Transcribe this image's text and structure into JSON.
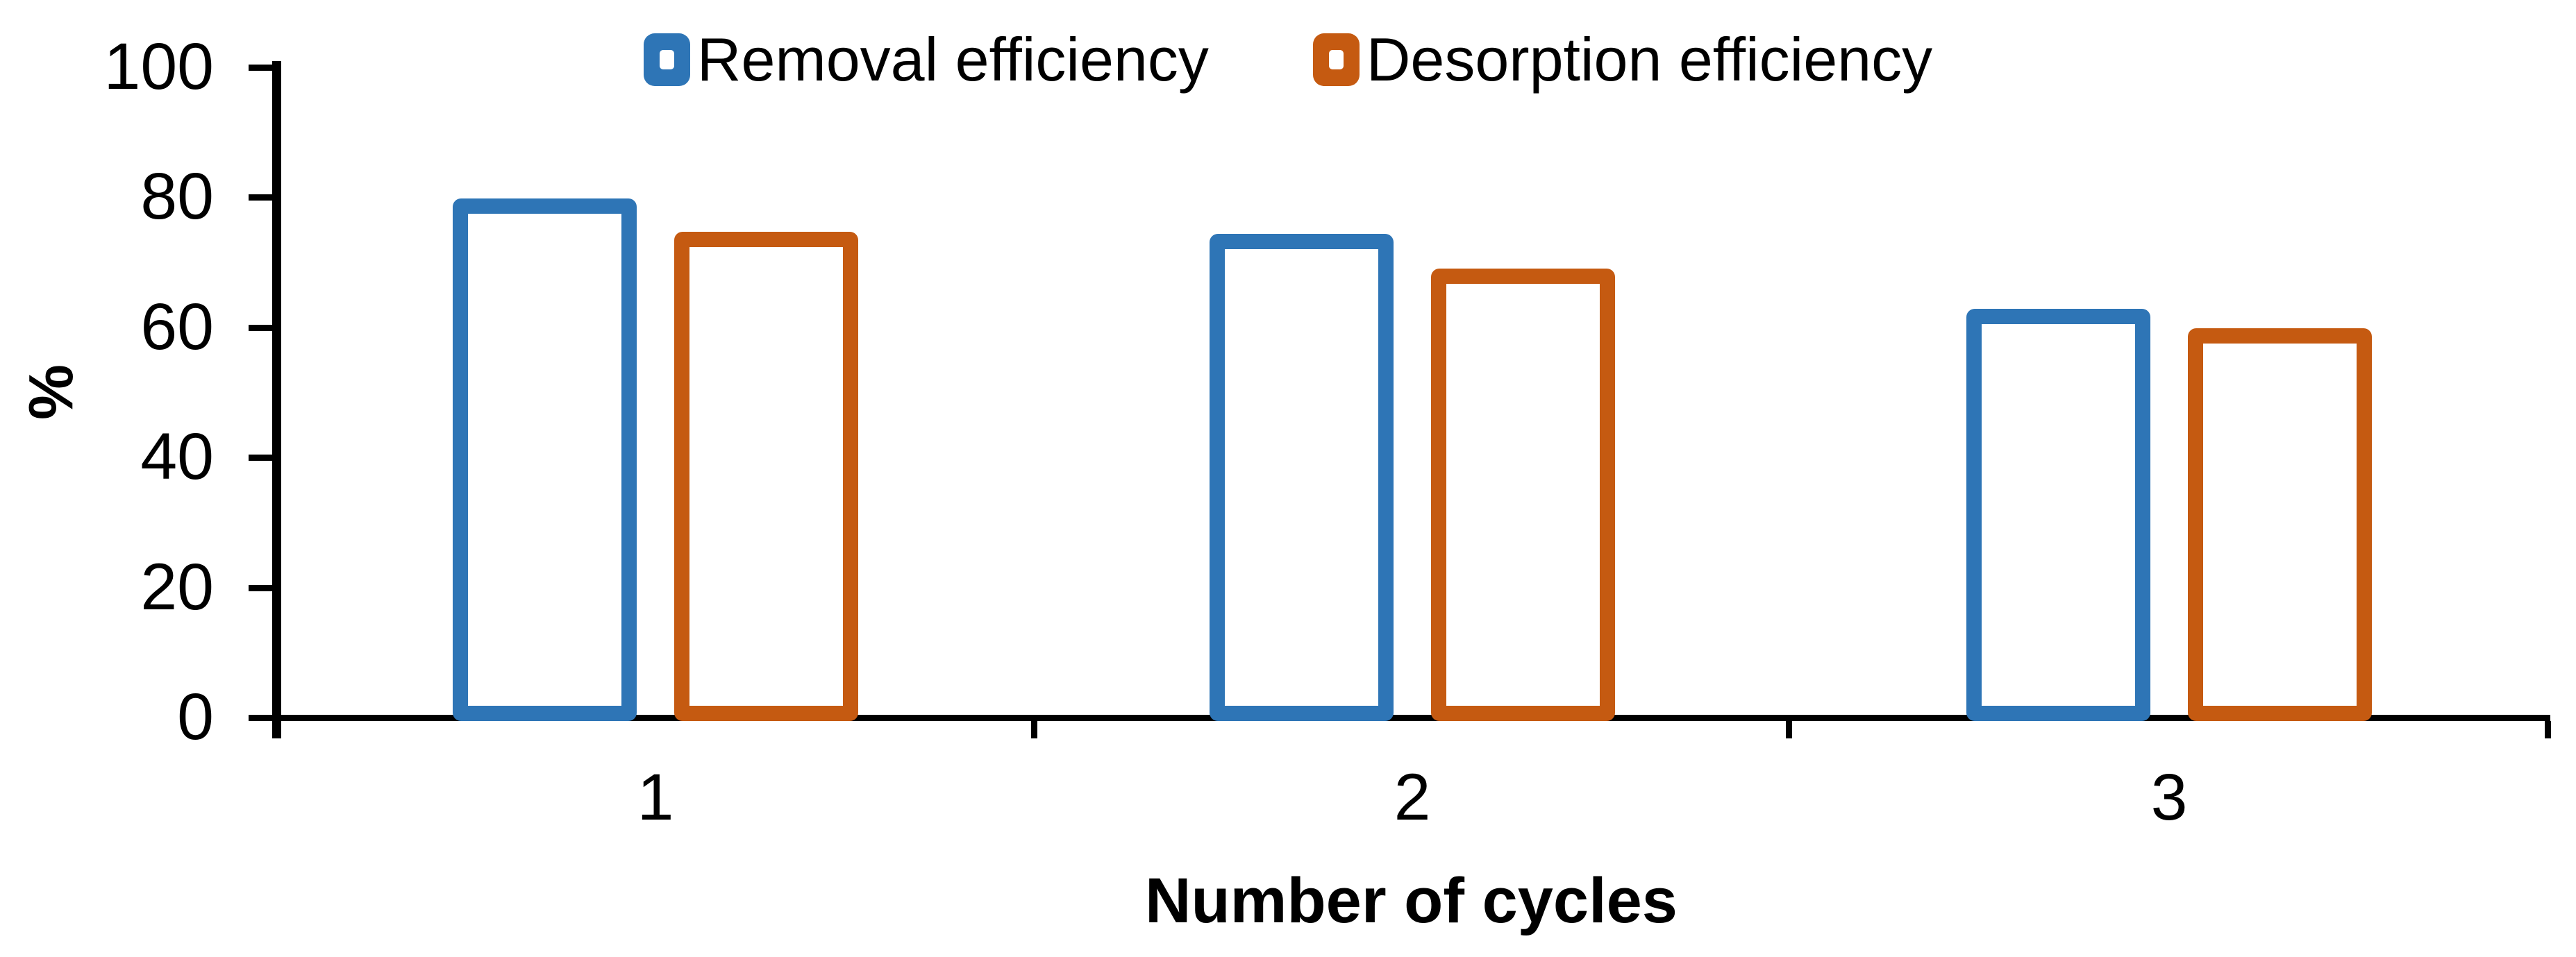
{
  "chart_data": {
    "type": "bar",
    "title": "",
    "categories": [
      "1",
      "2",
      "3"
    ],
    "series": [
      {
        "name": "Removal efficiency",
        "color": "#2E75B6",
        "values": [
          79.8,
          74.3,
          62.8
        ]
      },
      {
        "name": "Desorption efficiency",
        "color": "#C55A11",
        "values": [
          74.7,
          69.0,
          59.8
        ]
      }
    ],
    "xlabel": "Number of cycles",
    "ylabel": "%",
    "ylim": [
      0,
      100
    ],
    "yticks": [
      0,
      20,
      40,
      60,
      80,
      100
    ],
    "grid": false,
    "legend_position": "top-center",
    "bar_style": "hollow-outline",
    "axis_color": "#000000",
    "background": "#FFFFFF"
  }
}
